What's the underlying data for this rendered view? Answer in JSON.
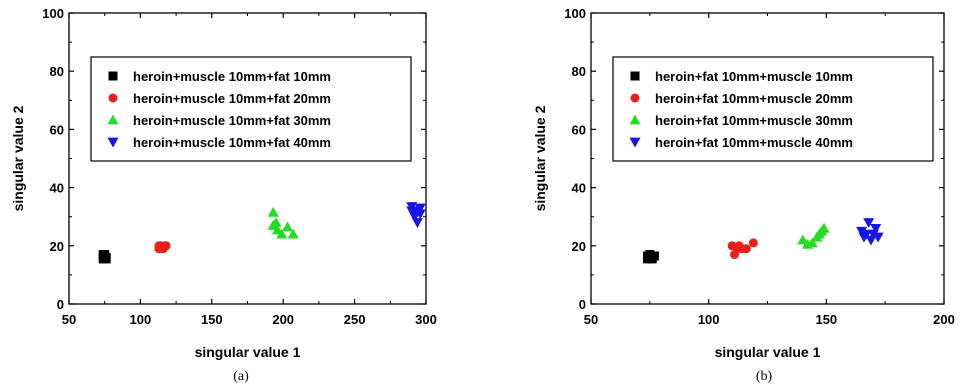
{
  "chart_data": [
    {
      "type": "scatter",
      "caption": "(a)",
      "xlabel": "singular value 1",
      "ylabel": "singular value 2",
      "xlim": [
        50,
        300
      ],
      "ylim": [
        0,
        100
      ],
      "xticks": [
        "50",
        "100",
        "150",
        "200",
        "250",
        "300"
      ],
      "yticks": [
        "0",
        "20",
        "40",
        "60",
        "80",
        "100"
      ],
      "legend_position": "upper-left",
      "series": [
        {
          "name": "heroin+muscle 10mm+fat 10mm",
          "marker": "square",
          "color": "#000000",
          "points": [
            [
              74,
              15.5
            ],
            [
              75,
              17
            ],
            [
              76,
              16
            ],
            [
              74,
              16.5
            ],
            [
              76,
              15.5
            ],
            [
              75,
              16
            ],
            [
              74,
              17
            ]
          ]
        },
        {
          "name": "heroin+muscle 10mm+fat 20mm",
          "marker": "circle",
          "color": "#e8201c",
          "points": [
            [
              113,
              19
            ],
            [
              114,
              20
            ],
            [
              115,
              19.5
            ],
            [
              116,
              19
            ],
            [
              117,
              20
            ],
            [
              118,
              20
            ],
            [
              113,
              20
            ]
          ]
        },
        {
          "name": "heroin+muscle 10mm+fat 30mm",
          "marker": "triangle-up",
          "color": "#22dd22",
          "points": [
            [
              193,
              31.5
            ],
            [
              193,
              27
            ],
            [
              196,
              25.5
            ],
            [
              199,
              24
            ],
            [
              203,
              26.5
            ],
            [
              207,
              24
            ],
            [
              195,
              28
            ]
          ]
        },
        {
          "name": "heroin+muscle 10mm+fat 40mm",
          "marker": "triangle-down",
          "color": "#1515e6",
          "points": [
            [
              290,
              33.5
            ],
            [
              292,
              31
            ],
            [
              294,
              32
            ],
            [
              296,
              33
            ],
            [
              292,
              30
            ],
            [
              294,
              28
            ],
            [
              290,
              32
            ],
            [
              296,
              31
            ]
          ]
        }
      ]
    },
    {
      "type": "scatter",
      "caption": "(b)",
      "xlabel": "singular value 1",
      "ylabel": "singular value 2",
      "xlim": [
        50,
        200
      ],
      "ylim": [
        0,
        100
      ],
      "xticks": [
        "50",
        "100",
        "150",
        "200"
      ],
      "yticks": [
        "0",
        "20",
        "40",
        "60",
        "80",
        "100"
      ],
      "legend_position": "upper-left",
      "series": [
        {
          "name": "heroin+fat 10mm+muscle 10mm",
          "marker": "square",
          "color": "#000000",
          "points": [
            [
              74,
              15.5
            ],
            [
              75,
              17
            ],
            [
              76,
              16
            ],
            [
              74,
              16.5
            ],
            [
              76,
              15.5
            ],
            [
              75,
              16
            ],
            [
              77,
              16.5
            ]
          ]
        },
        {
          "name": "heroin+fat 10mm+muscle 20mm",
          "marker": "circle",
          "color": "#e8201c",
          "points": [
            [
              110,
              20
            ],
            [
              111,
              17
            ],
            [
              112,
              19
            ],
            [
              113,
              20
            ],
            [
              114,
              19
            ],
            [
              116,
              19
            ],
            [
              119,
              21
            ]
          ]
        },
        {
          "name": "heroin+fat 10mm+muscle 30mm",
          "marker": "triangle-up",
          "color": "#22dd22",
          "points": [
            [
              140,
              22
            ],
            [
              142,
              20.5
            ],
            [
              144,
              21
            ],
            [
              146,
              23
            ],
            [
              147,
              24
            ],
            [
              148,
              25
            ],
            [
              149,
              26
            ]
          ]
        },
        {
          "name": "heroin+fat 10mm+muscle 40mm",
          "marker": "triangle-down",
          "color": "#1515e6",
          "points": [
            [
              165,
              25
            ],
            [
              166,
              23
            ],
            [
              168,
              28
            ],
            [
              169,
              22
            ],
            [
              170,
              24
            ],
            [
              171,
              26
            ],
            [
              172,
              23
            ],
            [
              167,
              24
            ]
          ]
        }
      ]
    }
  ]
}
